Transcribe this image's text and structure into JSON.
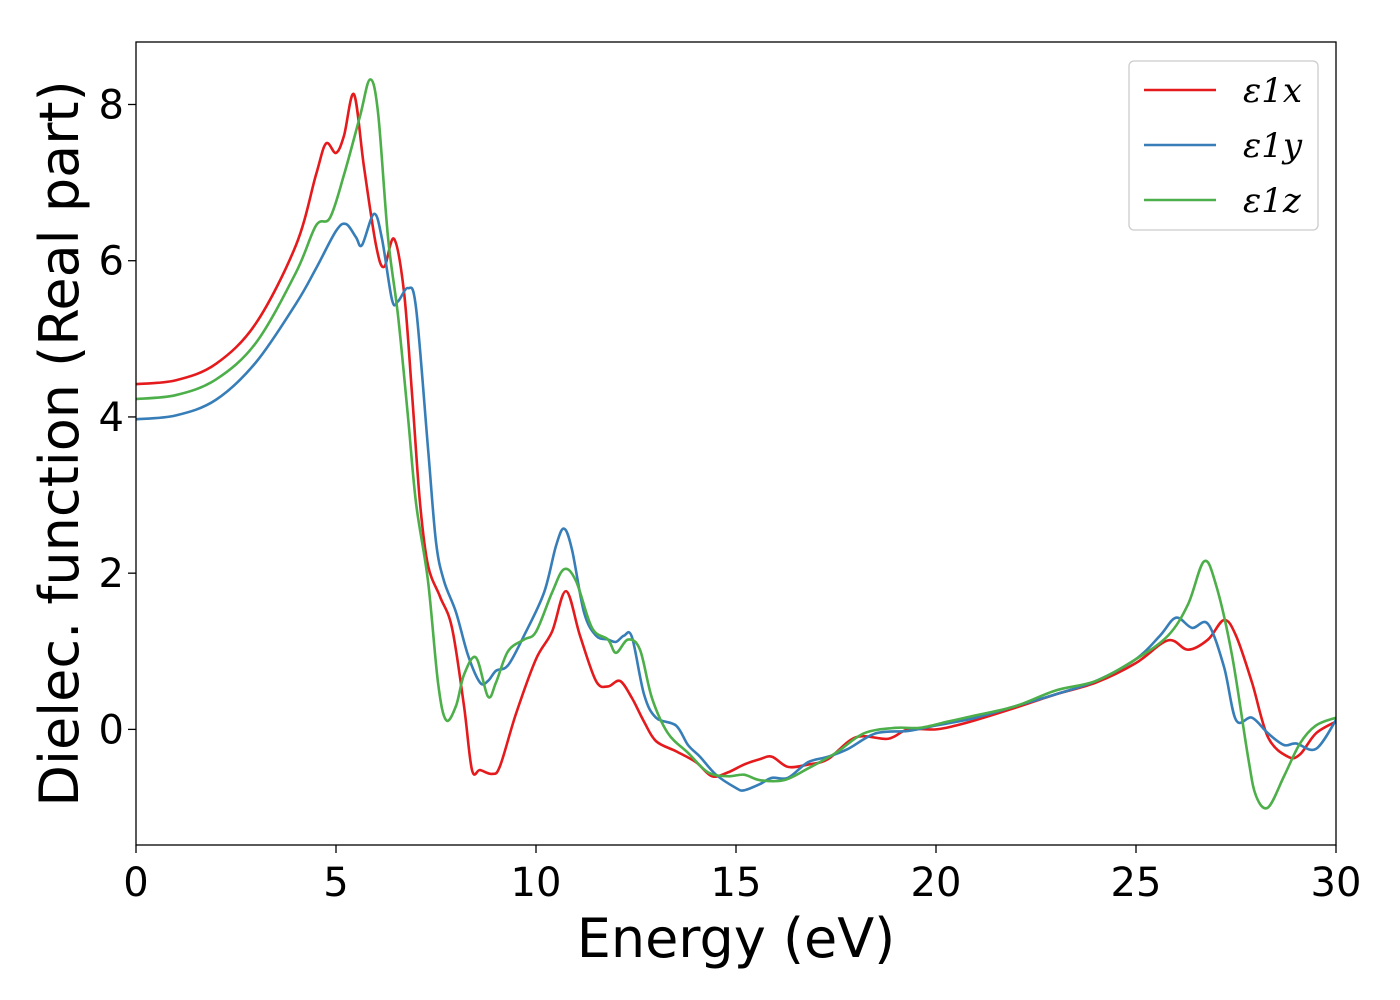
{
  "chart_data": {
    "type": "line",
    "xlabel": "Energy (eV)",
    "ylabel": "Dielec. function (Real part)",
    "xlim": [
      0,
      30
    ],
    "ylim": [
      -1.48,
      8.8
    ],
    "xticks": [
      0,
      5,
      10,
      15,
      20,
      25,
      30
    ],
    "yticks": [
      0,
      2,
      4,
      6,
      8
    ],
    "xtick_labels": [
      "0",
      "5",
      "10",
      "15",
      "20",
      "25",
      "30"
    ],
    "ytick_labels": [
      "0",
      "2",
      "4",
      "6",
      "8"
    ],
    "grid": false,
    "legend_position": "top-right",
    "series": [
      {
        "name": "ε1x",
        "color": "#e41a1c",
        "points": [
          [
            0,
            4.42
          ],
          [
            1,
            4.47
          ],
          [
            2,
            4.68
          ],
          [
            3,
            5.2
          ],
          [
            4,
            6.2
          ],
          [
            4.5,
            7.1
          ],
          [
            4.75,
            7.5
          ],
          [
            5.0,
            7.38
          ],
          [
            5.2,
            7.6
          ],
          [
            5.45,
            8.13
          ],
          [
            5.7,
            7.2
          ],
          [
            6.0,
            6.2
          ],
          [
            6.2,
            5.92
          ],
          [
            6.45,
            6.28
          ],
          [
            6.7,
            5.6
          ],
          [
            6.9,
            4.3
          ],
          [
            7.1,
            2.9
          ],
          [
            7.3,
            2.1
          ],
          [
            7.6,
            1.7
          ],
          [
            7.9,
            1.3
          ],
          [
            8.2,
            0.3
          ],
          [
            8.4,
            -0.52
          ],
          [
            8.6,
            -0.52
          ],
          [
            8.9,
            -0.57
          ],
          [
            9.1,
            -0.47
          ],
          [
            9.5,
            0.2
          ],
          [
            10.0,
            0.9
          ],
          [
            10.4,
            1.25
          ],
          [
            10.75,
            1.77
          ],
          [
            11.1,
            1.2
          ],
          [
            11.5,
            0.62
          ],
          [
            11.8,
            0.55
          ],
          [
            12.1,
            0.62
          ],
          [
            12.4,
            0.4
          ],
          [
            12.7,
            0.1
          ],
          [
            13.0,
            -0.15
          ],
          [
            13.5,
            -0.28
          ],
          [
            14.0,
            -0.42
          ],
          [
            14.4,
            -0.6
          ],
          [
            14.8,
            -0.55
          ],
          [
            15.2,
            -0.45
          ],
          [
            15.6,
            -0.38
          ],
          [
            15.9,
            -0.35
          ],
          [
            16.3,
            -0.48
          ],
          [
            16.8,
            -0.45
          ],
          [
            17.3,
            -0.38
          ],
          [
            18.0,
            -0.1
          ],
          [
            18.8,
            -0.12
          ],
          [
            19.3,
            0.0
          ],
          [
            20.0,
            0.0
          ],
          [
            20.5,
            0.05
          ],
          [
            21.0,
            0.12
          ],
          [
            22.0,
            0.28
          ],
          [
            23.0,
            0.45
          ],
          [
            24.0,
            0.6
          ],
          [
            25.0,
            0.85
          ],
          [
            25.8,
            1.14
          ],
          [
            26.3,
            1.02
          ],
          [
            26.8,
            1.15
          ],
          [
            27.2,
            1.4
          ],
          [
            27.5,
            1.2
          ],
          [
            27.9,
            0.6
          ],
          [
            28.3,
            -0.1
          ],
          [
            28.8,
            -0.35
          ],
          [
            29.1,
            -0.32
          ],
          [
            29.5,
            -0.05
          ],
          [
            30,
            0.1
          ]
        ]
      },
      {
        "name": "ε1y",
        "color": "#377eb8",
        "points": [
          [
            0,
            3.97
          ],
          [
            1,
            4.02
          ],
          [
            2,
            4.22
          ],
          [
            3,
            4.7
          ],
          [
            4,
            5.45
          ],
          [
            4.5,
            5.9
          ],
          [
            5.0,
            6.38
          ],
          [
            5.25,
            6.47
          ],
          [
            5.5,
            6.3
          ],
          [
            5.65,
            6.2
          ],
          [
            5.95,
            6.6
          ],
          [
            6.15,
            6.28
          ],
          [
            6.4,
            5.5
          ],
          [
            6.55,
            5.48
          ],
          [
            6.8,
            5.65
          ],
          [
            7.0,
            5.4
          ],
          [
            7.3,
            3.6
          ],
          [
            7.5,
            2.4
          ],
          [
            7.7,
            1.9
          ],
          [
            8.0,
            1.5
          ],
          [
            8.3,
            0.95
          ],
          [
            8.6,
            0.6
          ],
          [
            8.8,
            0.62
          ],
          [
            9.0,
            0.75
          ],
          [
            9.3,
            0.82
          ],
          [
            9.7,
            1.2
          ],
          [
            10.2,
            1.75
          ],
          [
            10.5,
            2.35
          ],
          [
            10.7,
            2.57
          ],
          [
            10.9,
            2.3
          ],
          [
            11.2,
            1.5
          ],
          [
            11.5,
            1.2
          ],
          [
            11.8,
            1.15
          ],
          [
            12.0,
            1.12
          ],
          [
            12.2,
            1.2
          ],
          [
            12.4,
            1.18
          ],
          [
            12.7,
            0.45
          ],
          [
            13.0,
            0.15
          ],
          [
            13.5,
            0.05
          ],
          [
            13.8,
            -0.2
          ],
          [
            14.1,
            -0.35
          ],
          [
            14.5,
            -0.58
          ],
          [
            15.0,
            -0.75
          ],
          [
            15.2,
            -0.78
          ],
          [
            15.6,
            -0.7
          ],
          [
            15.9,
            -0.62
          ],
          [
            16.3,
            -0.62
          ],
          [
            16.8,
            -0.42
          ],
          [
            17.3,
            -0.35
          ],
          [
            17.8,
            -0.25
          ],
          [
            18.5,
            -0.05
          ],
          [
            19.3,
            -0.02
          ],
          [
            20.0,
            0.05
          ],
          [
            21.0,
            0.15
          ],
          [
            22.0,
            0.3
          ],
          [
            23.0,
            0.45
          ],
          [
            24.0,
            0.62
          ],
          [
            25.0,
            0.9
          ],
          [
            25.6,
            1.2
          ],
          [
            26.0,
            1.43
          ],
          [
            26.4,
            1.3
          ],
          [
            26.8,
            1.35
          ],
          [
            27.2,
            0.8
          ],
          [
            27.5,
            0.12
          ],
          [
            27.9,
            0.15
          ],
          [
            28.3,
            -0.05
          ],
          [
            28.7,
            -0.2
          ],
          [
            29.0,
            -0.18
          ],
          [
            29.5,
            -0.25
          ],
          [
            30,
            0.12
          ]
        ]
      },
      {
        "name": "ε1z",
        "color": "#4daf4a",
        "points": [
          [
            0,
            4.23
          ],
          [
            1,
            4.28
          ],
          [
            2,
            4.48
          ],
          [
            3,
            4.95
          ],
          [
            4,
            5.85
          ],
          [
            4.5,
            6.45
          ],
          [
            4.85,
            6.55
          ],
          [
            5.2,
            7.1
          ],
          [
            5.6,
            7.85
          ],
          [
            5.85,
            8.32
          ],
          [
            6.05,
            7.9
          ],
          [
            6.3,
            6.3
          ],
          [
            6.55,
            5.3
          ],
          [
            6.8,
            4.0
          ],
          [
            7.0,
            2.9
          ],
          [
            7.3,
            1.9
          ],
          [
            7.55,
            0.6
          ],
          [
            7.75,
            0.12
          ],
          [
            8.0,
            0.3
          ],
          [
            8.2,
            0.7
          ],
          [
            8.5,
            0.92
          ],
          [
            8.8,
            0.42
          ],
          [
            9.0,
            0.6
          ],
          [
            9.3,
            1.0
          ],
          [
            9.7,
            1.15
          ],
          [
            10.0,
            1.25
          ],
          [
            10.4,
            1.75
          ],
          [
            10.7,
            2.05
          ],
          [
            11.0,
            1.9
          ],
          [
            11.4,
            1.3
          ],
          [
            11.8,
            1.15
          ],
          [
            12.0,
            0.98
          ],
          [
            12.3,
            1.15
          ],
          [
            12.6,
            1.02
          ],
          [
            12.9,
            0.4
          ],
          [
            13.3,
            -0.05
          ],
          [
            13.8,
            -0.3
          ],
          [
            14.3,
            -0.55
          ],
          [
            14.8,
            -0.6
          ],
          [
            15.2,
            -0.58
          ],
          [
            15.6,
            -0.65
          ],
          [
            16.2,
            -0.65
          ],
          [
            16.8,
            -0.5
          ],
          [
            17.5,
            -0.3
          ],
          [
            18.2,
            -0.05
          ],
          [
            19.0,
            0.02
          ],
          [
            19.6,
            0.02
          ],
          [
            20.3,
            0.1
          ],
          [
            21.0,
            0.18
          ],
          [
            22.0,
            0.3
          ],
          [
            23.0,
            0.5
          ],
          [
            24.0,
            0.62
          ],
          [
            25.0,
            0.9
          ],
          [
            25.8,
            1.2
          ],
          [
            26.3,
            1.6
          ],
          [
            26.7,
            2.15
          ],
          [
            27.0,
            1.85
          ],
          [
            27.4,
            0.95
          ],
          [
            27.8,
            -0.35
          ],
          [
            28.0,
            -0.85
          ],
          [
            28.3,
            -1.0
          ],
          [
            28.7,
            -0.6
          ],
          [
            29.1,
            -0.18
          ],
          [
            29.5,
            0.05
          ],
          [
            30,
            0.15
          ]
        ]
      }
    ]
  }
}
